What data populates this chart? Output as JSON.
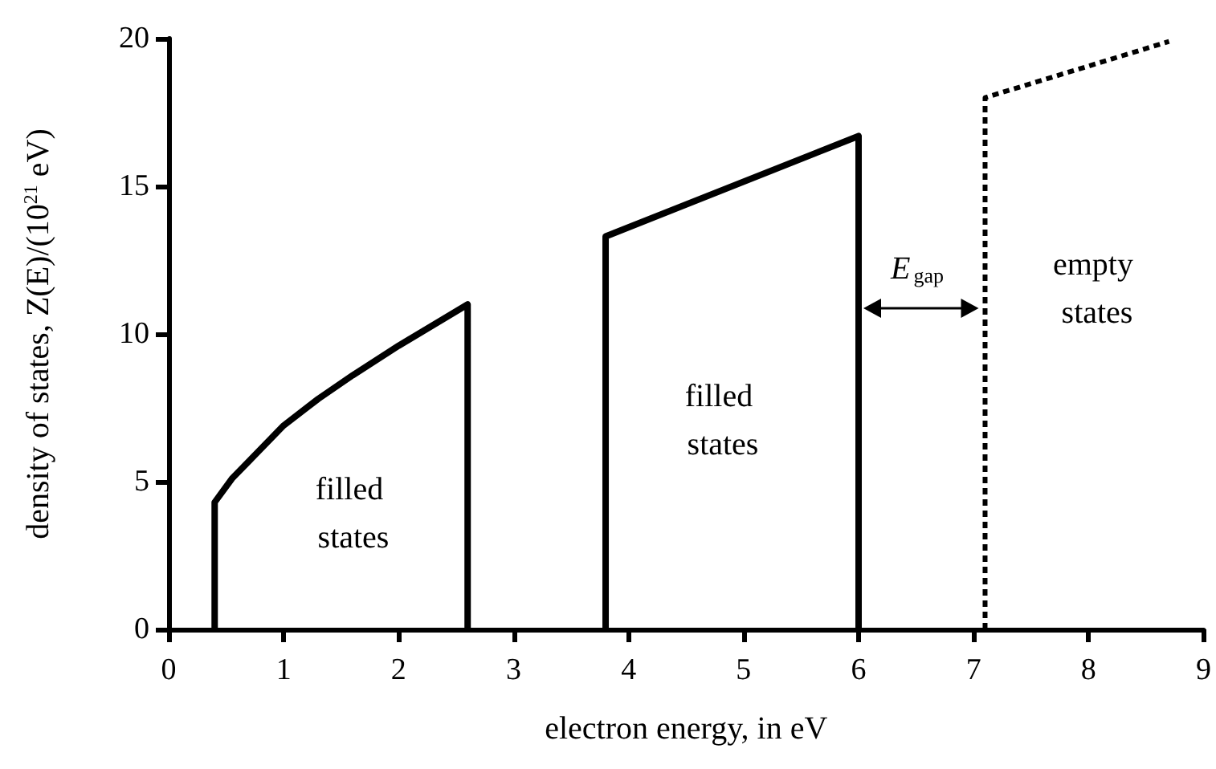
{
  "chart_data": {
    "type": "line",
    "xlabel": "electron energy, in eV",
    "ylabel": "density of states, Z(E)/(10$^{21}$ eV)",
    "xlim": [
      0,
      9
    ],
    "xticks": [
      0,
      1,
      2,
      3,
      4,
      5,
      6,
      7,
      8,
      9
    ],
    "ylim": [
      0,
      20
    ],
    "yticks": [
      0,
      5,
      10,
      15,
      20
    ],
    "grid": false,
    "marker": "none",
    "series": [
      {
        "color": "#000000",
        "line_style": "solid",
        "x": [
          0.4,
          0.4,
          0.55,
          0.7,
          1.0,
          1.3,
          1.6,
          2.0,
          2.3,
          2.6,
          2.6
        ],
        "values": [
          0,
          4.3,
          5.1,
          5.7,
          6.9,
          7.8,
          8.6,
          9.6,
          10.3,
          11.0,
          0
        ]
      },
      {
        "color": "#000000",
        "line_style": "solid",
        "x": [
          3.8,
          3.8,
          6,
          6
        ],
        "values": [
          0,
          13.3,
          16.7,
          0
        ]
      },
      {
        "color": "#000000",
        "line_style": "dashed",
        "x": [
          7.1,
          7.1,
          8.7
        ],
        "values": [
          0,
          18.0,
          19.9
        ]
      }
    ],
    "annotations": [
      "filled states",
      "filled states",
      "E$_{gap}$",
      "empty states"
    ]
  }
}
